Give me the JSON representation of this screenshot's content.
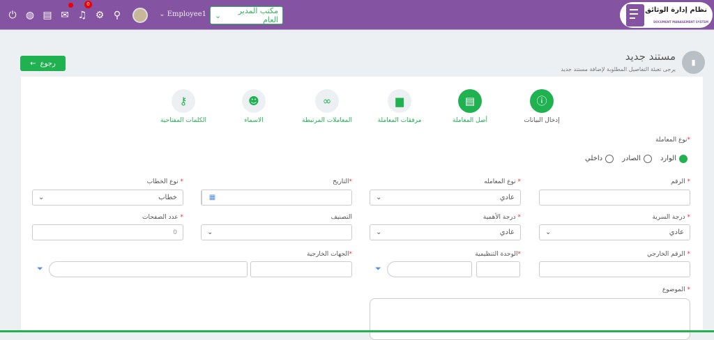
{
  "header": {
    "logo_ar": "نظام إدارة الوثائق",
    "logo_en": "DOCUMENT MANAGEMENT SYSTEM",
    "office": "مكتب المدير العام",
    "user": "Employee1",
    "notifications": "0",
    "icons": [
      "power-icon",
      "globe-icon",
      "book-icon",
      "chat-icon",
      "bell-icon",
      "gear-icon",
      "search-icon"
    ]
  },
  "page": {
    "title": "مستند جديد",
    "subtitle": "يرجى تعبئة التفاصيل المطلوبة لإضافة مستند جديد",
    "back": "رجوع"
  },
  "steps": [
    {
      "label": "إدخال البيانات",
      "icon": "info-icon",
      "active": true
    },
    {
      "label": "أصل المعاملة",
      "icon": "file-icon",
      "active": true
    },
    {
      "label": "مرفقات المعاملة",
      "icon": "archive-icon",
      "active": false
    },
    {
      "label": "المعاملات المرتبطة",
      "icon": "link-icon",
      "active": false
    },
    {
      "label": "الاسماء",
      "icon": "user-tag-icon",
      "active": false
    },
    {
      "label": "الكلمات المفتاحية",
      "icon": "key-icon",
      "active": false
    }
  ],
  "form": {
    "type_label": "نوع المعاملة",
    "radios": [
      "الوارد",
      "الصادر",
      "داخلي"
    ],
    "selected_radio": "الوارد",
    "number_label": "الرقم",
    "number": "",
    "trans_type_label": "نوع المعامله",
    "trans_type": "عادي",
    "date_label": "التاريخ",
    "date": "",
    "letter_type_label": "نوع الخطاب",
    "letter_type": "خطاب",
    "secrecy_label": "درجة السرية",
    "secrecy": "عادي",
    "importance_label": "درجة الأهمية",
    "importance": "عادي",
    "class_label": "التصنيف",
    "class": "",
    "pages_label": "عدد الصفحات",
    "pages": "0",
    "ext_number_label": "الرقم الخارجي",
    "org_unit_label": "الوحدة التنظيمية",
    "ext_parties_label": "الجهات الخارجية",
    "subject_label": "الموضوع",
    "required": "*"
  },
  "colors": {
    "header": "#8453a2",
    "accent": "#20b151"
  }
}
